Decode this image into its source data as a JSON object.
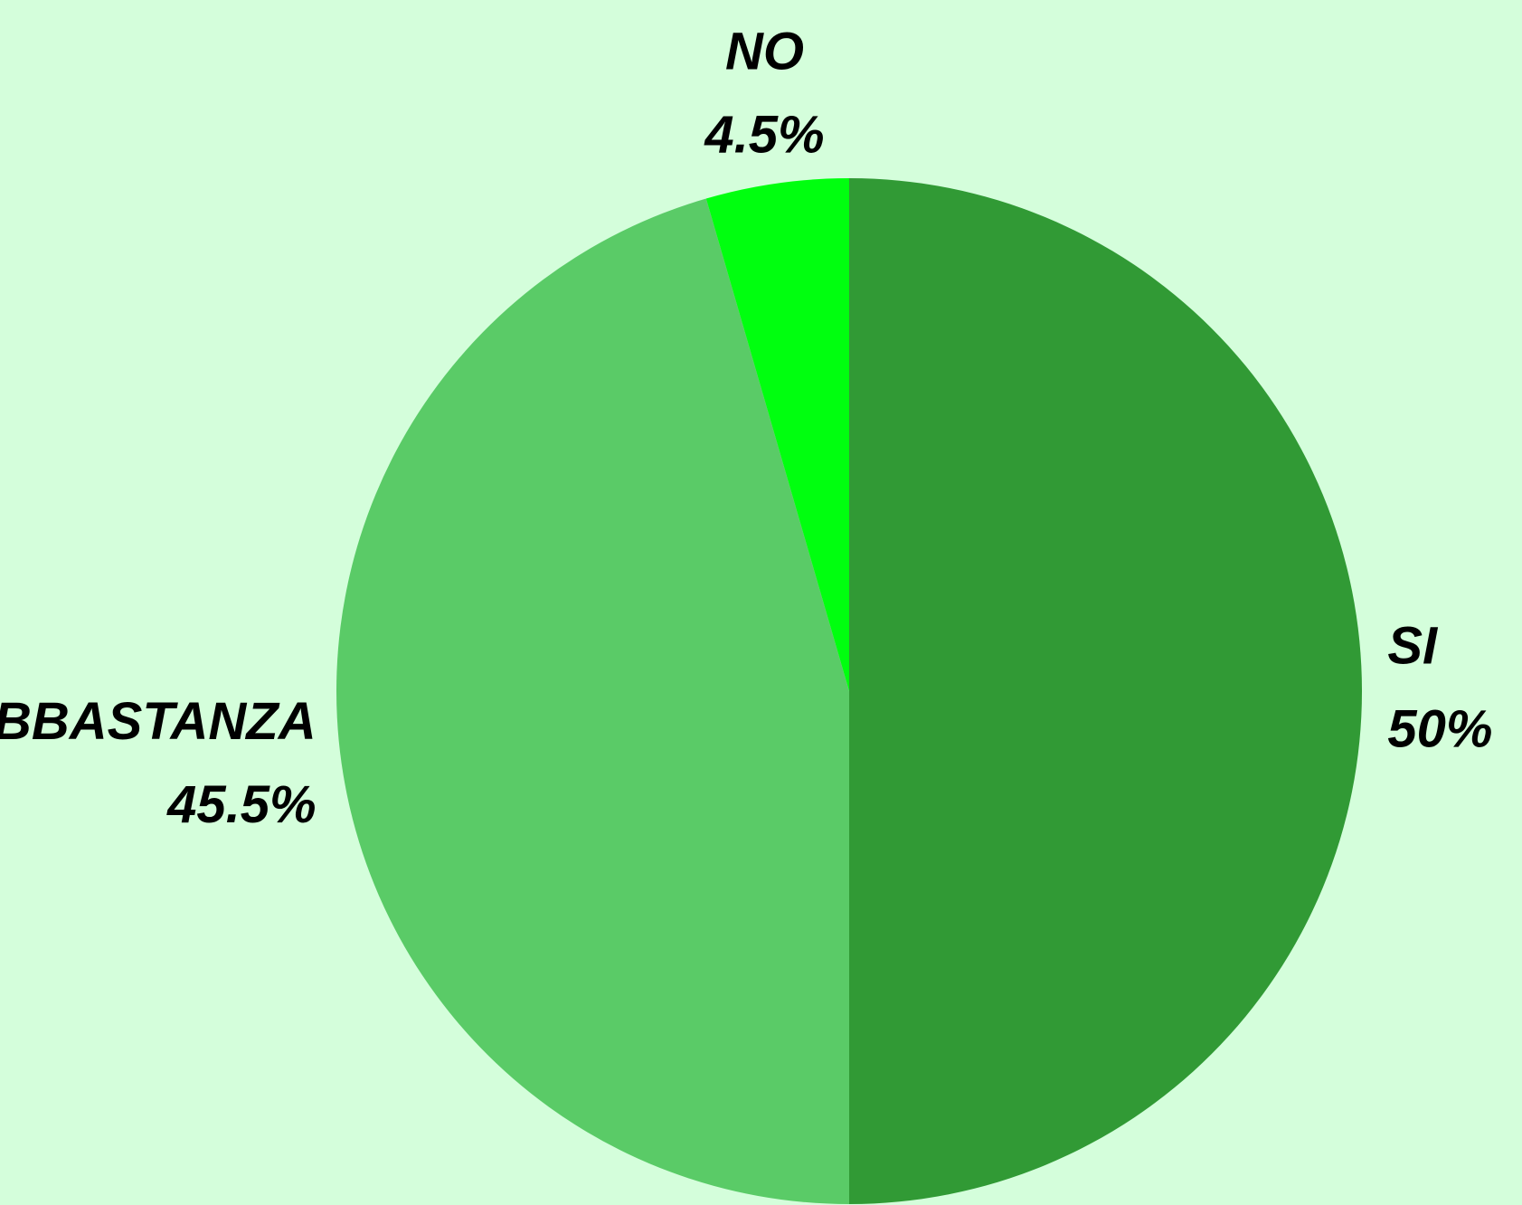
{
  "chart_data": {
    "type": "pie",
    "categories": [
      "SI",
      "ABBASTANZA",
      "NO"
    ],
    "values": [
      50,
      45.5,
      4.5
    ],
    "value_labels": [
      "50%",
      "45.5%",
      "4.5%"
    ],
    "colors": [
      "#319a35",
      "#5acb67",
      "#00ff0f"
    ]
  }
}
